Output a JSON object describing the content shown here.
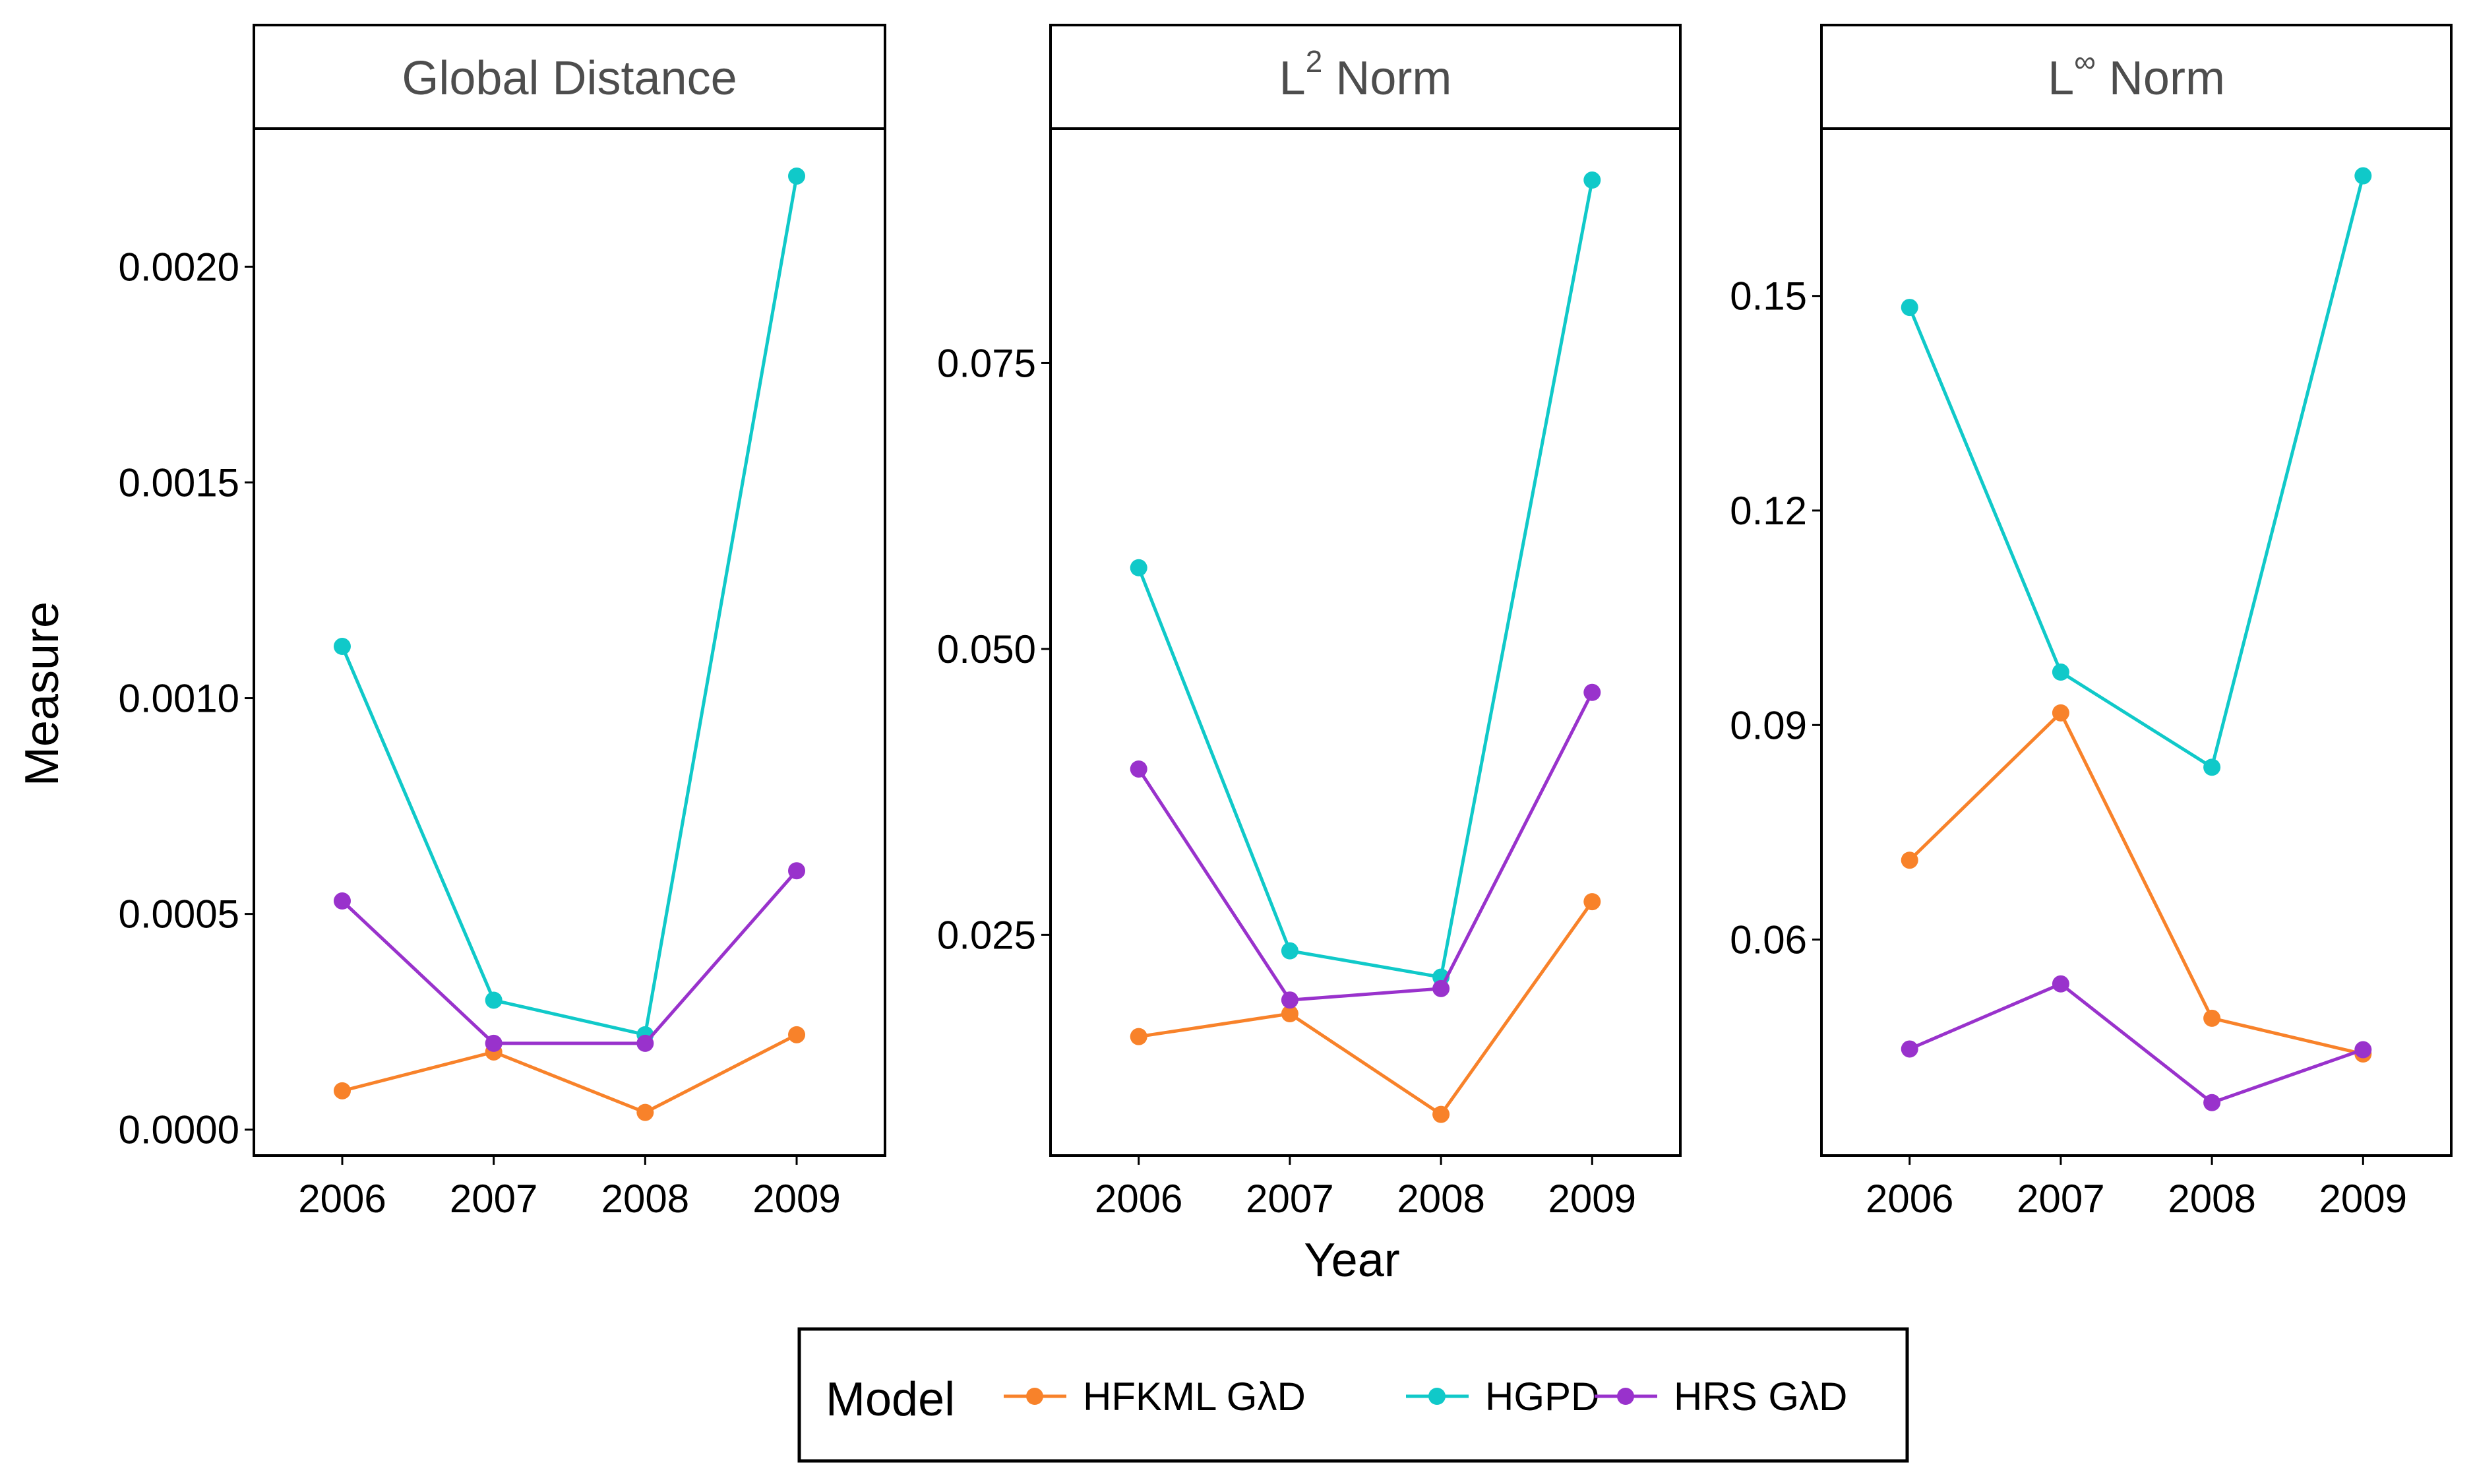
{
  "chart_data": {
    "type": "line",
    "xlabel": "Year",
    "ylabel": "Measure",
    "x": [
      "2006",
      "2007",
      "2008",
      "2009"
    ],
    "legend": {
      "title": "Model",
      "placement": "bottom",
      "entries": [
        "HFKML GλD",
        "HGPD",
        "HRS GλD"
      ]
    },
    "colors": {
      "HFKML GλD": "#F8822A",
      "HGPD": "#10C9C9",
      "HRS GλD": "#9932CC"
    },
    "panels": [
      {
        "title_main": "Global Distance",
        "title_sup": "",
        "title_suffix": "",
        "ylim": [
          -6e-05,
          0.00232
        ],
        "yticks": [
          0.0,
          0.0005,
          0.001,
          0.0015,
          0.002
        ],
        "ytick_labels": [
          "0.0000",
          "0.0005",
          "0.0010",
          "0.0015",
          "0.0020"
        ],
        "series": [
          {
            "name": "HFKML GλD",
            "values": [
              9e-05,
              0.00018,
              4e-05,
              0.00022
            ]
          },
          {
            "name": "HGPD",
            "values": [
              0.00112,
              0.0003,
              0.00022,
              0.00221
            ]
          },
          {
            "name": "HRS GλD",
            "values": [
              0.00053,
              0.0002,
              0.0002,
              0.0006
            ]
          }
        ]
      },
      {
        "title_main": "L",
        "title_sup": "2",
        "title_suffix": " Norm",
        "ylim": [
          0.0057,
          0.0955
        ],
        "yticks": [
          0.025,
          0.05,
          0.075
        ],
        "ytick_labels": [
          "0.025",
          "0.050",
          "0.075"
        ],
        "series": [
          {
            "name": "HFKML GλD",
            "values": [
              0.0161,
              0.0181,
              0.0093,
              0.0279
            ]
          },
          {
            "name": "HGPD",
            "values": [
              0.0571,
              0.0236,
              0.0213,
              0.091
            ]
          },
          {
            "name": "HRS GλD",
            "values": [
              0.0395,
              0.0193,
              0.0203,
              0.0462
            ]
          }
        ]
      },
      {
        "title_main": "L",
        "title_sup": "∞",
        "title_suffix": " Norm",
        "ylim": [
          0.0298,
          0.1734
        ],
        "yticks": [
          0.06,
          0.09,
          0.12,
          0.15
        ],
        "ytick_labels": [
          "0.06",
          "0.09",
          "0.12",
          "0.15"
        ],
        "series": [
          {
            "name": "HFKML GλD",
            "values": [
              0.0711,
              0.0917,
              0.049,
              0.044
            ]
          },
          {
            "name": "HGPD",
            "values": [
              0.1484,
              0.0974,
              0.0841,
              0.1668
            ]
          },
          {
            "name": "HRS GλD",
            "values": [
              0.0447,
              0.0538,
              0.0372,
              0.0446
            ]
          }
        ]
      }
    ]
  }
}
